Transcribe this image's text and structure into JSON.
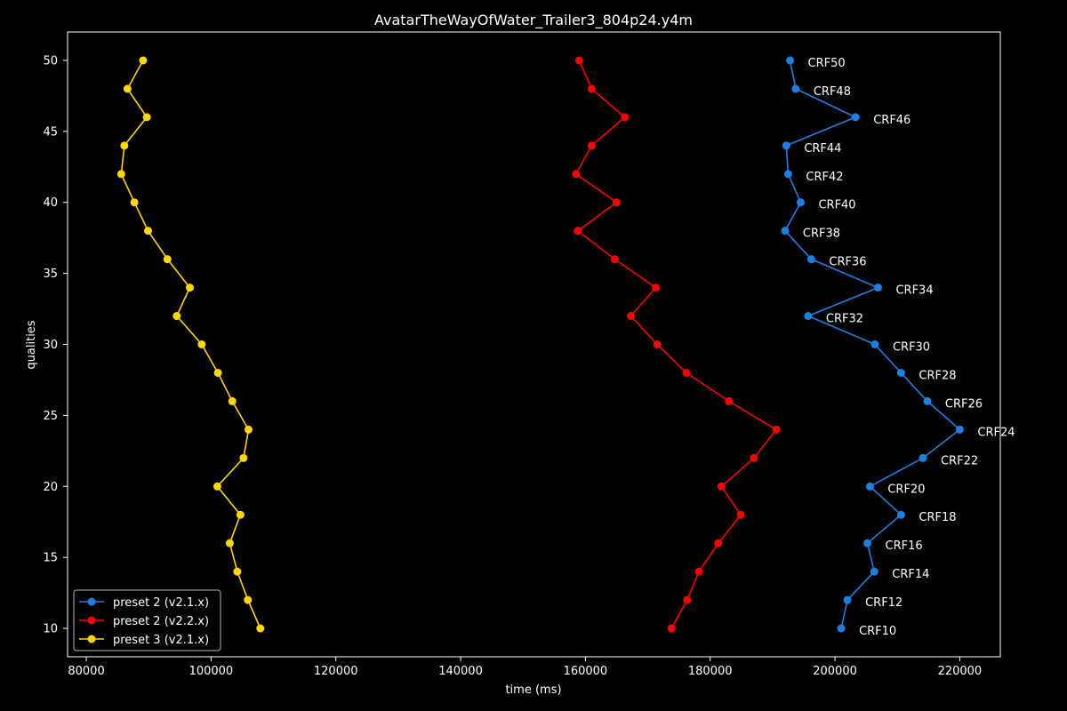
{
  "chart_data": {
    "type": "line",
    "title": "AvatarTheWayOfWater_Trailer3_804p24.y4m",
    "xlabel": "time (ms)",
    "ylabel": "qualities",
    "xlim": [
      77000,
      226500
    ],
    "ylim": [
      8,
      52
    ],
    "xticks": [
      80000,
      100000,
      120000,
      140000,
      160000,
      180000,
      200000,
      220000
    ],
    "yticks": [
      10,
      15,
      20,
      25,
      30,
      35,
      40,
      45,
      50
    ],
    "grid": false,
    "legend_position": "lower-left",
    "qualities": [
      10,
      12,
      14,
      16,
      18,
      20,
      22,
      24,
      26,
      28,
      30,
      32,
      34,
      36,
      38,
      40,
      42,
      44,
      46,
      48,
      50
    ],
    "point_labels": [
      "CRF10",
      "CRF12",
      "CRF14",
      "CRF16",
      "CRF18",
      "CRF20",
      "CRF22",
      "CRF24",
      "CRF26",
      "CRF28",
      "CRF30",
      "CRF32",
      "CRF34",
      "CRF36",
      "CRF38",
      "CRF40",
      "CRF42",
      "CRF44",
      "CRF46",
      "CRF48",
      "CRF50"
    ],
    "labeled_series": 0,
    "series": [
      {
        "name": "preset 2 (v2.1.x)",
        "color": "#1a80e6",
        "x": [
          201000,
          202000,
          206300,
          205200,
          210600,
          205600,
          214100,
          220000,
          214800,
          210600,
          206400,
          195700,
          206900,
          196200,
          192000,
          194500,
          192500,
          192200,
          203300,
          193700,
          192800
        ]
      },
      {
        "name": "preset 2 (v2.2.x)",
        "color": "#ff0000",
        "x": [
          173800,
          176300,
          178200,
          181300,
          184900,
          181800,
          187000,
          190600,
          183000,
          176200,
          171500,
          167300,
          171300,
          164700,
          158800,
          165000,
          158500,
          161000,
          166300,
          161000,
          159000
        ]
      },
      {
        "name": "preset 3 (v2.1.x)",
        "color": "#ffd700",
        "x": [
          107900,
          105900,
          104200,
          103000,
          104700,
          101000,
          105200,
          106000,
          103400,
          101100,
          98500,
          94500,
          96600,
          93000,
          89900,
          87700,
          85600,
          86100,
          89700,
          86600,
          89100
        ]
      }
    ]
  }
}
